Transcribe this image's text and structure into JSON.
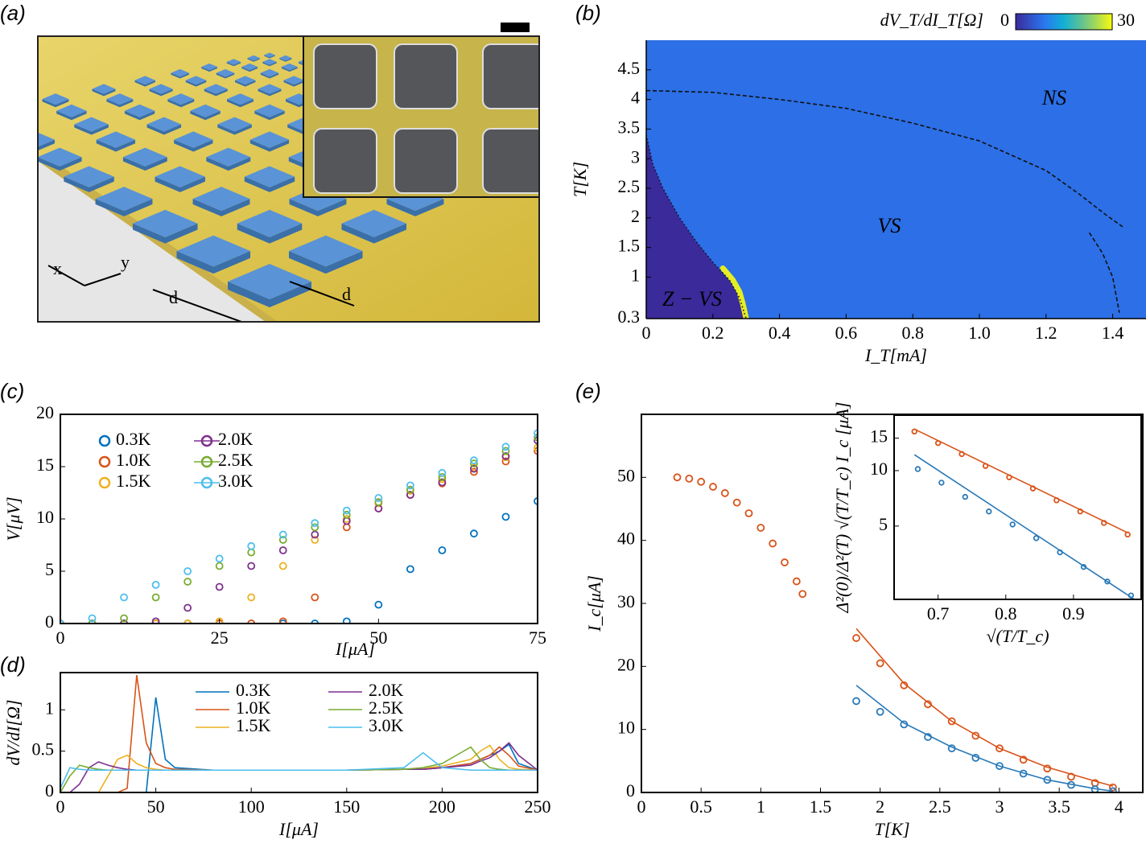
{
  "figure_a": {
    "label": "(a)",
    "axis_labels": [
      "x",
      "y"
    ],
    "spacing_labels": [
      "d",
      "d"
    ]
  },
  "chart_data": [
    {
      "type": "heatmap",
      "label": "(b)",
      "xlabel": "I_T[mA]",
      "ylabel": "T[K]",
      "xlim": [
        0,
        1.5
      ],
      "ylim": [
        0.3,
        5.0
      ],
      "xticks": [
        0,
        0.2,
        0.4,
        0.6,
        0.8,
        {
          "value": 1,
          "label": "1.0"
        },
        1.2,
        1.4
      ],
      "yticks": [
        0.3,
        1,
        1.5,
        2,
        2.5,
        3,
        3.5,
        4,
        4.5
      ],
      "colorbar": {
        "label": "dV_T/dI_T[Ω]",
        "clim": [
          0,
          30
        ]
      },
      "background": 8,
      "regions": [
        {
          "value": 0,
          "x": [
            0,
            0,
            0.02,
            0.05,
            0.1,
            0.15,
            0.2,
            0.25,
            0.28,
            0.3
          ],
          "y": [
            0.3,
            3.4,
            2.9,
            2.5,
            2.0,
            1.6,
            1.25,
            0.95,
            0.65,
            0.3
          ]
        }
      ],
      "ridges": [
        {
          "value": 30,
          "x": [
            0.23,
            0.26,
            0.28,
            0.29,
            0.3
          ],
          "y": [
            1.15,
            0.95,
            0.75,
            0.55,
            0.3
          ]
        }
      ],
      "curves": [
        {
          "style": "dotted",
          "x": [
            0,
            0.02,
            0.05,
            0.1,
            0.15,
            0.2,
            0.25,
            0.28,
            0.3
          ],
          "y": [
            3.4,
            2.9,
            2.5,
            2.0,
            1.6,
            1.25,
            0.95,
            0.65,
            0.3
          ]
        },
        {
          "style": "dashed",
          "x": [
            0,
            0.2,
            0.4,
            0.6,
            0.8,
            1.0,
            1.2,
            1.3,
            1.38,
            1.43
          ],
          "y": [
            4.15,
            4.12,
            4.0,
            3.85,
            3.6,
            3.3,
            2.8,
            2.4,
            2.05,
            1.85
          ]
        },
        {
          "style": "dashed",
          "x": [
            1.33,
            1.37,
            1.4,
            1.42
          ],
          "y": [
            1.75,
            1.4,
            1.0,
            0.4
          ]
        }
      ],
      "annotations": [
        "NS",
        "VS",
        "Z − VS"
      ]
    },
    {
      "type": "scatter",
      "label": "(c)",
      "xlabel": "I[μA]",
      "ylabel": "V[μV]",
      "xlim": [
        0,
        75
      ],
      "ylim": [
        0,
        20
      ],
      "xticks": [
        0,
        25,
        50,
        75
      ],
      "yticks": [
        0,
        5,
        10,
        15,
        20
      ],
      "x": [
        0,
        5,
        10,
        15,
        20,
        25,
        30,
        35,
        40,
        45,
        50,
        55,
        60,
        65,
        70,
        75
      ],
      "series": [
        {
          "name": "0.3K",
          "color": "#0072bd",
          "values": [
            0,
            0,
            0,
            0,
            0,
            0,
            0,
            0,
            0,
            0.2,
            1.8,
            5.2,
            7.0,
            8.6,
            10.2,
            11.7
          ]
        },
        {
          "name": "1.0K",
          "color": "#d95319",
          "values": [
            0,
            0,
            0,
            0,
            0,
            0,
            0,
            0.2,
            2.5,
            9.2,
            11.0,
            12.3,
            13.4,
            14.5,
            15.5,
            16.5
          ]
        },
        {
          "name": "1.5K",
          "color": "#edb120",
          "values": [
            0,
            0,
            0,
            0,
            0,
            0.2,
            2.5,
            5.5,
            8.0,
            10.0,
            11.5,
            12.7,
            13.8,
            14.9,
            15.9,
            16.8
          ]
        },
        {
          "name": "2.0K",
          "color": "#7e2f8e",
          "values": [
            0,
            0,
            0,
            0.2,
            1.5,
            3.5,
            5.5,
            7.0,
            8.5,
            9.8,
            11.0,
            12.3,
            13.5,
            14.8,
            16.0,
            17.5
          ]
        },
        {
          "name": "2.5K",
          "color": "#77ac30",
          "values": [
            0,
            0,
            0.5,
            2.5,
            4.0,
            5.5,
            6.8,
            8.0,
            9.2,
            10.4,
            11.6,
            12.8,
            14.0,
            15.3,
            16.5,
            17.8
          ]
        },
        {
          "name": "3.0K",
          "color": "#4dbeee",
          "values": [
            0,
            0.5,
            2.5,
            3.7,
            5.0,
            6.2,
            7.4,
            8.5,
            9.6,
            10.8,
            12.0,
            13.2,
            14.4,
            15.6,
            16.9,
            18.2
          ]
        }
      ]
    },
    {
      "type": "line",
      "label": "(d)",
      "xlabel": "I[μA]",
      "ylabel": "dV/dI[Ω]",
      "xlim": [
        0,
        250
      ],
      "ylim": [
        0,
        1.45
      ],
      "xticks": [
        0,
        50,
        100,
        150,
        200,
        250
      ],
      "yticks": [
        0,
        0.5,
        1
      ],
      "x": [
        0,
        5,
        10,
        15,
        20,
        25,
        30,
        35,
        40,
        45,
        50,
        55,
        60,
        80,
        150,
        180,
        190,
        200,
        215,
        220,
        225,
        230,
        235,
        240,
        250
      ],
      "series": [
        {
          "name": "0.3K",
          "color": "#0072bd",
          "values": [
            0,
            0,
            0,
            0,
            0,
            0,
            0,
            0,
            0,
            0,
            1.15,
            0.4,
            0.3,
            0.27,
            0.27,
            0.28,
            0.28,
            0.3,
            0.35,
            0.4,
            0.45,
            0.5,
            0.58,
            0.35,
            0.27
          ]
        },
        {
          "name": "1.0K",
          "color": "#d95319",
          "values": [
            0,
            0,
            0,
            0,
            0,
            0,
            0,
            0.05,
            1.42,
            0.6,
            0.35,
            0.3,
            0.28,
            0.27,
            0.27,
            0.28,
            0.28,
            0.3,
            0.35,
            0.4,
            0.45,
            0.55,
            0.45,
            0.32,
            0.27
          ]
        },
        {
          "name": "1.5K",
          "color": "#edb120",
          "values": [
            0,
            0,
            0,
            0,
            0,
            0.2,
            0.4,
            0.45,
            0.35,
            0.3,
            0.28,
            0.27,
            0.27,
            0.27,
            0.27,
            0.28,
            0.29,
            0.32,
            0.4,
            0.5,
            0.57,
            0.4,
            0.3,
            0.28,
            0.27
          ]
        },
        {
          "name": "2.0K",
          "color": "#7e2f8e",
          "values": [
            0,
            0,
            0.1,
            0.3,
            0.37,
            0.33,
            0.3,
            0.28,
            0.27,
            0.27,
            0.27,
            0.27,
            0.27,
            0.27,
            0.27,
            0.28,
            0.28,
            0.3,
            0.33,
            0.38,
            0.42,
            0.5,
            0.6,
            0.45,
            0.27
          ]
        },
        {
          "name": "2.5K",
          "color": "#77ac30",
          "values": [
            0,
            0.2,
            0.33,
            0.3,
            0.28,
            0.27,
            0.27,
            0.27,
            0.27,
            0.27,
            0.27,
            0.27,
            0.27,
            0.27,
            0.27,
            0.28,
            0.3,
            0.35,
            0.55,
            0.4,
            0.3,
            0.28,
            0.27,
            0.27,
            0.27
          ]
        },
        {
          "name": "3.0K",
          "color": "#4dbeee",
          "values": [
            0.05,
            0.3,
            0.28,
            0.27,
            0.27,
            0.27,
            0.27,
            0.27,
            0.27,
            0.27,
            0.27,
            0.27,
            0.27,
            0.27,
            0.27,
            0.3,
            0.48,
            0.3,
            0.27,
            0.27,
            0.27,
            0.27,
            0.27,
            0.27,
            0.27
          ]
        }
      ]
    },
    {
      "type": "scatter",
      "label": "(e)",
      "xlabel": "T[K]",
      "ylabel": "I_c[μA]",
      "xlim": [
        0,
        4.2
      ],
      "ylim": [
        0,
        60
      ],
      "xticks": [
        0,
        0.5,
        1,
        1.5,
        2,
        2.5,
        3,
        3.5,
        4
      ],
      "yticks": [
        0,
        10,
        20,
        30,
        40,
        50
      ],
      "series": [
        {
          "style": "markers",
          "color": "#d95319",
          "x": [
            0.3,
            0.4,
            0.5,
            0.6,
            0.7,
            0.8,
            0.9,
            1.0,
            1.1,
            1.2,
            1.3,
            1.35
          ],
          "values": [
            50,
            49.8,
            49.3,
            48.5,
            47.5,
            46,
            44.3,
            42,
            39.5,
            36.5,
            33.5,
            31.5
          ]
        },
        {
          "style": "markers",
          "color": "#d95319",
          "x": [
            1.8,
            2.0,
            2.2,
            2.4,
            2.6,
            2.8,
            3.0,
            3.2,
            3.4,
            3.6,
            3.8,
            3.95
          ],
          "values": [
            24.5,
            20.5,
            17,
            14,
            11.3,
            9,
            7,
            5.2,
            3.8,
            2.5,
            1.5,
            0.8
          ]
        },
        {
          "style": "line",
          "color": "#d95319",
          "x": [
            1.8,
            2.2,
            2.6,
            3.0,
            3.4,
            3.8,
            3.95
          ],
          "values": [
            26,
            17.3,
            11.3,
            7,
            4,
            1.8,
            1.0
          ]
        },
        {
          "style": "markers",
          "color": "#2a7ab8",
          "x": [
            1.8,
            2.0,
            2.2,
            2.4,
            2.6,
            2.8,
            3.0,
            3.2,
            3.4,
            3.6,
            3.8,
            3.95
          ],
          "values": [
            14.5,
            12.8,
            10.8,
            8.8,
            7,
            5.5,
            4.2,
            3,
            2,
            1.2,
            0.5,
            0.2
          ]
        },
        {
          "style": "line",
          "color": "#2a7ab8",
          "x": [
            1.8,
            2.2,
            2.6,
            3.0,
            3.4,
            3.8,
            3.95
          ],
          "values": [
            17,
            11,
            7.2,
            4.2,
            2,
            0.6,
            0.2
          ]
        }
      ]
    },
    {
      "type": "scatter",
      "xlabel": "√(T/T_c)",
      "ylabel": "Δ²(0)/Δ²(T) √(T/T_c) I_c [μA]",
      "log_y": true,
      "xlim": [
        0.635,
        1.0
      ],
      "ylim": [
        2,
        20
      ],
      "xticks": [
        0.7,
        0.8,
        0.9
      ],
      "yticks": [
        5,
        10,
        15
      ],
      "series": [
        {
          "style": "markers",
          "color": "#d95319",
          "x": [
            0.665,
            0.7,
            0.735,
            0.77,
            0.805,
            0.84,
            0.875,
            0.91,
            0.945,
            0.98
          ],
          "values": [
            16.3,
            14.1,
            12.3,
            10.6,
            9.2,
            8.0,
            6.9,
            6.0,
            5.2,
            4.5
          ]
        },
        {
          "style": "line",
          "color": "#d95319",
          "x": [
            0.665,
            0.98
          ],
          "values": [
            16.8,
            4.6
          ]
        },
        {
          "style": "markers",
          "color": "#2a7ab8",
          "x": [
            0.67,
            0.705,
            0.74,
            0.775,
            0.81,
            0.845,
            0.88,
            0.915,
            0.95,
            0.985
          ],
          "values": [
            10.2,
            8.6,
            7.2,
            6.0,
            5.1,
            4.3,
            3.6,
            3.0,
            2.5,
            2.1
          ]
        },
        {
          "style": "line",
          "color": "#2a7ab8",
          "x": [
            0.665,
            0.99
          ],
          "values": [
            12.2,
            2.0
          ]
        }
      ]
    }
  ]
}
